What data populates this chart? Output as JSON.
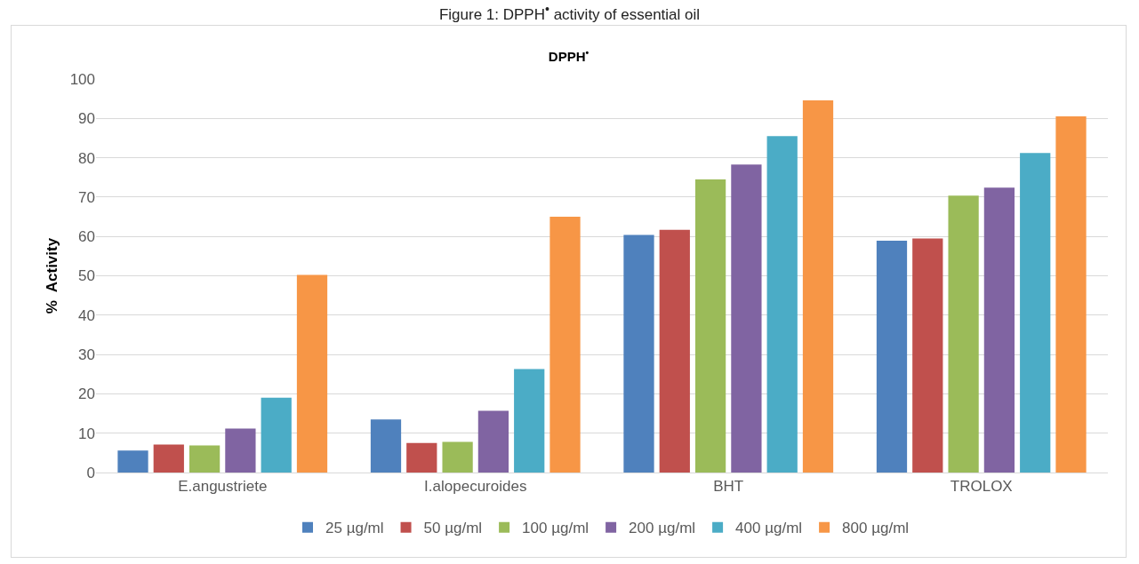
{
  "chart_data": {
    "type": "bar",
    "title": "DPPH$^{•}$",
    "ylabel": "%  Activity",
    "annotations": [
      "Figure 1: DPPH$^{•}$ activity of essential oil"
    ],
    "categories": [
      "E.angustriete",
      "I.alopecuroides",
      "BHT",
      "TROLOX"
    ],
    "series": [
      {
        "name": "25 µg/ml",
        "color": "#4f81bd",
        "values": [
          5.6,
          13.5,
          60.4,
          58.9
        ]
      },
      {
        "name": "50 µg/ml",
        "color": "#c0504d",
        "values": [
          7.1,
          7.5,
          61.7,
          59.5
        ]
      },
      {
        "name": "100 µg/ml",
        "color": "#9bbb59",
        "values": [
          6.9,
          7.8,
          74.5,
          70.4
        ]
      },
      {
        "name": "200 µg/ml",
        "color": "#8064a2",
        "values": [
          11.2,
          15.7,
          78.3,
          72.4
        ]
      },
      {
        "name": "400 µg/ml",
        "color": "#4bacc6",
        "values": [
          19.0,
          26.3,
          85.5,
          81.2
        ]
      },
      {
        "name": "800 µg/ml",
        "color": "#f79646",
        "values": [
          50.2,
          65.0,
          94.6,
          90.5
        ]
      }
    ],
    "ylim": [
      0,
      100
    ],
    "yticks": [
      0,
      10,
      20,
      30,
      40,
      50,
      60,
      70,
      80,
      90,
      100
    ],
    "grid": "y",
    "legend": "bottom"
  }
}
